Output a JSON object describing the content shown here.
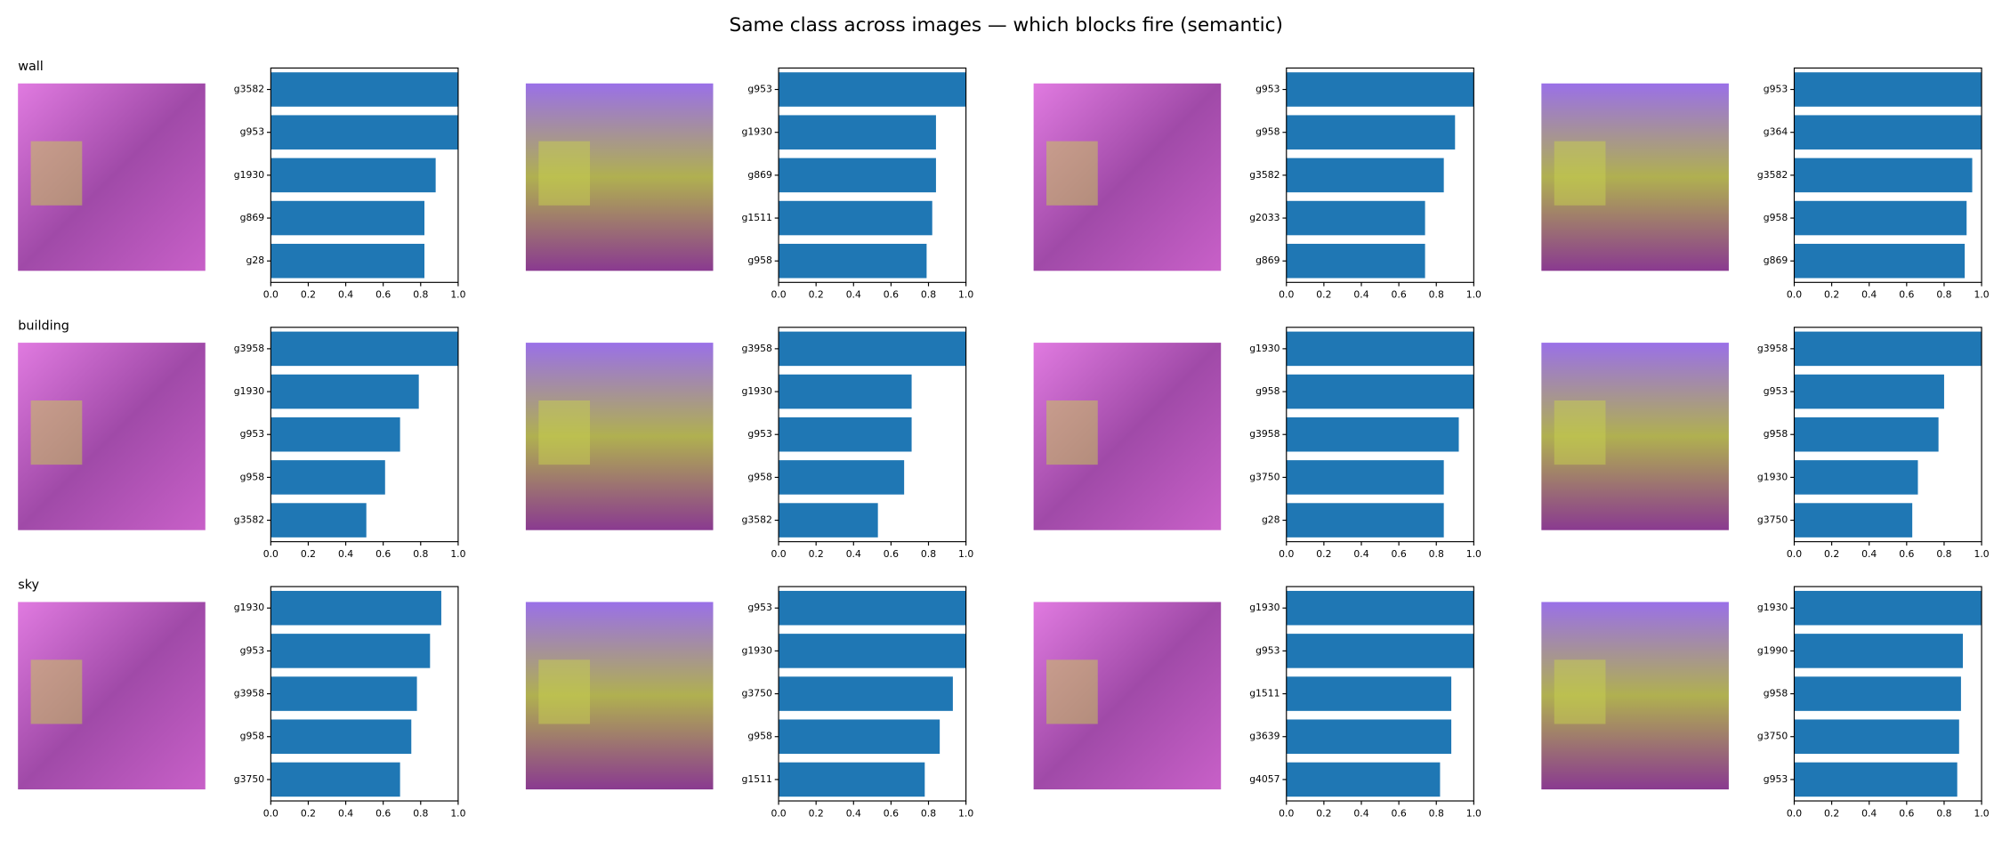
{
  "title": "Same class across images — which blocks fire (semantic)",
  "row_labels": [
    "wall",
    "building",
    "sky"
  ],
  "chart_data": [
    {
      "type": "hbar",
      "categories": [
        "g3582",
        "g953",
        "g1930",
        "g869",
        "g28"
      ],
      "values": [
        1.0,
        1.0,
        0.88,
        0.82,
        0.82
      ],
      "color": "#1f77b4",
      "xlim": [
        0,
        1
      ],
      "xticks": [
        {
          "value": 0,
          "label": "0.0"
        },
        {
          "value": 0.2,
          "label": "0.2"
        },
        {
          "value": 0.4,
          "label": "0.4"
        },
        {
          "value": 0.6,
          "label": "0.6"
        },
        {
          "value": 0.8,
          "label": "0.8"
        },
        {
          "value": 1,
          "label": "1.0"
        }
      ]
    },
    {
      "type": "hbar",
      "categories": [
        "g953",
        "g1930",
        "g869",
        "g1511",
        "g958"
      ],
      "values": [
        1.0,
        0.84,
        0.84,
        0.82,
        0.79
      ],
      "color": "#1f77b4",
      "xlim": [
        0,
        1
      ],
      "xticks": [
        {
          "value": 0,
          "label": "0.0"
        },
        {
          "value": 0.2,
          "label": "0.2"
        },
        {
          "value": 0.4,
          "label": "0.4"
        },
        {
          "value": 0.6,
          "label": "0.6"
        },
        {
          "value": 0.8,
          "label": "0.8"
        },
        {
          "value": 1,
          "label": "1.0"
        }
      ]
    },
    {
      "type": "hbar",
      "categories": [
        "g953",
        "g958",
        "g3582",
        "g2033",
        "g869"
      ],
      "values": [
        1.0,
        0.9,
        0.84,
        0.74,
        0.74
      ],
      "color": "#1f77b4",
      "xlim": [
        0,
        1
      ],
      "xticks": [
        {
          "value": 0,
          "label": "0.0"
        },
        {
          "value": 0.2,
          "label": "0.2"
        },
        {
          "value": 0.4,
          "label": "0.4"
        },
        {
          "value": 0.6,
          "label": "0.6"
        },
        {
          "value": 0.8,
          "label": "0.8"
        },
        {
          "value": 1,
          "label": "1.0"
        }
      ]
    },
    {
      "type": "hbar",
      "categories": [
        "g953",
        "g364",
        "g3582",
        "g958",
        "g869"
      ],
      "values": [
        1.0,
        1.0,
        0.95,
        0.92,
        0.91
      ],
      "color": "#1f77b4",
      "xlim": [
        0,
        1
      ],
      "xticks": [
        {
          "value": 0,
          "label": "0.0"
        },
        {
          "value": 0.2,
          "label": "0.2"
        },
        {
          "value": 0.4,
          "label": "0.4"
        },
        {
          "value": 0.6,
          "label": "0.6"
        },
        {
          "value": 0.8,
          "label": "0.8"
        },
        {
          "value": 1,
          "label": "1.0"
        }
      ]
    },
    {
      "type": "hbar",
      "categories": [
        "g3958",
        "g1930",
        "g953",
        "g958",
        "g3582"
      ],
      "values": [
        1.0,
        0.79,
        0.69,
        0.61,
        0.51
      ],
      "color": "#1f77b4",
      "xlim": [
        0,
        1
      ],
      "xticks": [
        {
          "value": 0,
          "label": "0.0"
        },
        {
          "value": 0.2,
          "label": "0.2"
        },
        {
          "value": 0.4,
          "label": "0.4"
        },
        {
          "value": 0.6,
          "label": "0.6"
        },
        {
          "value": 0.8,
          "label": "0.8"
        },
        {
          "value": 1,
          "label": "1.0"
        }
      ]
    },
    {
      "type": "hbar",
      "categories": [
        "g3958",
        "g1930",
        "g953",
        "g958",
        "g3582"
      ],
      "values": [
        1.0,
        0.71,
        0.71,
        0.67,
        0.53
      ],
      "color": "#1f77b4",
      "xlim": [
        0,
        1
      ],
      "xticks": [
        {
          "value": 0,
          "label": "0.0"
        },
        {
          "value": 0.2,
          "label": "0.2"
        },
        {
          "value": 0.4,
          "label": "0.4"
        },
        {
          "value": 0.6,
          "label": "0.6"
        },
        {
          "value": 0.8,
          "label": "0.8"
        },
        {
          "value": 1,
          "label": "1.0"
        }
      ]
    },
    {
      "type": "hbar",
      "categories": [
        "g1930",
        "g958",
        "g3958",
        "g3750",
        "g28"
      ],
      "values": [
        1.0,
        1.0,
        0.92,
        0.84,
        0.84
      ],
      "color": "#1f77b4",
      "xlim": [
        0,
        1
      ],
      "xticks": [
        {
          "value": 0,
          "label": "0.0"
        },
        {
          "value": 0.2,
          "label": "0.2"
        },
        {
          "value": 0.4,
          "label": "0.4"
        },
        {
          "value": 0.6,
          "label": "0.6"
        },
        {
          "value": 0.8,
          "label": "0.8"
        },
        {
          "value": 1,
          "label": "1.0"
        }
      ]
    },
    {
      "type": "hbar",
      "categories": [
        "g3958",
        "g953",
        "g958",
        "g1930",
        "g3750"
      ],
      "values": [
        1.0,
        0.8,
        0.77,
        0.66,
        0.63
      ],
      "color": "#1f77b4",
      "xlim": [
        0,
        1
      ],
      "xticks": [
        {
          "value": 0,
          "label": "0.0"
        },
        {
          "value": 0.2,
          "label": "0.2"
        },
        {
          "value": 0.4,
          "label": "0.4"
        },
        {
          "value": 0.6,
          "label": "0.6"
        },
        {
          "value": 0.8,
          "label": "0.8"
        },
        {
          "value": 1,
          "label": "1.0"
        }
      ]
    },
    {
      "type": "hbar",
      "categories": [
        "g1930",
        "g953",
        "g3958",
        "g958",
        "g3750"
      ],
      "values": [
        0.91,
        0.85,
        0.78,
        0.75,
        0.69
      ],
      "color": "#1f77b4",
      "xlim": [
        0,
        1
      ],
      "xticks": [
        {
          "value": 0,
          "label": "0.0"
        },
        {
          "value": 0.2,
          "label": "0.2"
        },
        {
          "value": 0.4,
          "label": "0.4"
        },
        {
          "value": 0.6,
          "label": "0.6"
        },
        {
          "value": 0.8,
          "label": "0.8"
        },
        {
          "value": 1,
          "label": "1.0"
        }
      ]
    },
    {
      "type": "hbar",
      "categories": [
        "g953",
        "g1930",
        "g3750",
        "g958",
        "g1511"
      ],
      "values": [
        1.0,
        1.0,
        0.93,
        0.86,
        0.78
      ],
      "color": "#1f77b4",
      "xlim": [
        0,
        1
      ],
      "xticks": [
        {
          "value": 0,
          "label": "0.0"
        },
        {
          "value": 0.2,
          "label": "0.2"
        },
        {
          "value": 0.4,
          "label": "0.4"
        },
        {
          "value": 0.6,
          "label": "0.6"
        },
        {
          "value": 0.8,
          "label": "0.8"
        },
        {
          "value": 1,
          "label": "1.0"
        }
      ]
    },
    {
      "type": "hbar",
      "categories": [
        "g1930",
        "g953",
        "g1511",
        "g3639",
        "g4057"
      ],
      "values": [
        1.0,
        1.0,
        0.88,
        0.88,
        0.82
      ],
      "color": "#1f77b4",
      "xlim": [
        0,
        1
      ],
      "xticks": [
        {
          "value": 0,
          "label": "0.0"
        },
        {
          "value": 0.2,
          "label": "0.2"
        },
        {
          "value": 0.4,
          "label": "0.4"
        },
        {
          "value": 0.6,
          "label": "0.6"
        },
        {
          "value": 0.8,
          "label": "0.8"
        },
        {
          "value": 1,
          "label": "1.0"
        }
      ]
    },
    {
      "type": "hbar",
      "categories": [
        "g1930",
        "g1990",
        "g958",
        "g3750",
        "g953"
      ],
      "values": [
        1.0,
        0.9,
        0.89,
        0.88,
        0.87
      ],
      "color": "#1f77b4",
      "xlim": [
        0,
        1
      ],
      "xticks": [
        {
          "value": 0,
          "label": "0.0"
        },
        {
          "value": 0.2,
          "label": "0.2"
        },
        {
          "value": 0.4,
          "label": "0.4"
        },
        {
          "value": 0.6,
          "label": "0.6"
        },
        {
          "value": 0.8,
          "label": "0.8"
        },
        {
          "value": 1,
          "label": "1.0"
        }
      ]
    }
  ]
}
